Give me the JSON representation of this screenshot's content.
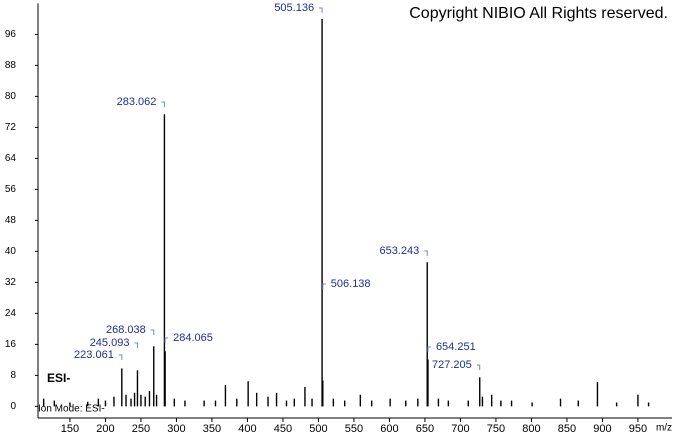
{
  "chart_data": {
    "type": "spectrum",
    "title": "Copyright NIBIO All Rights reserved.",
    "mode_label": "ESI-",
    "footer": "Ion Mode: ESI-",
    "xlabel": "m/z",
    "xlim": [
      105,
      998
    ],
    "ylim": [
      -3,
      104
    ],
    "xticks": [
      150,
      200,
      250,
      300,
      350,
      400,
      450,
      500,
      550,
      600,
      650,
      700,
      750,
      800,
      850,
      900,
      950
    ],
    "yticks": [
      0,
      8,
      16,
      24,
      32,
      40,
      48,
      56,
      64,
      72,
      80,
      88,
      96
    ],
    "color": "#000000",
    "label_color": "#1f2f8f",
    "peaks": {
      "x": [
        223.061,
        245.093,
        268.038,
        283.062,
        284.065,
        505.136,
        506.138,
        653.243,
        654.251,
        727.205
      ],
      "values": [
        9.8,
        9.3,
        15.5,
        75.4,
        14.2,
        100,
        6.7,
        37.2,
        12.1,
        7.5
      ]
    },
    "minor_peaks": {
      "x": [
        113,
        128,
        150,
        175,
        190,
        200,
        212,
        229,
        236,
        241,
        250,
        256,
        262,
        272,
        297,
        312,
        339,
        355,
        369,
        385,
        401,
        413,
        429,
        441,
        455,
        466,
        481,
        491,
        521,
        537,
        559,
        575,
        601,
        623,
        640,
        669,
        683,
        711,
        731,
        744,
        757,
        772,
        801,
        841,
        866,
        893,
        920,
        950,
        965
      ],
      "values": [
        2,
        1.5,
        1,
        1.2,
        2,
        1.5,
        2.5,
        3,
        2,
        3.5,
        3,
        2.5,
        4,
        3,
        2,
        1.5,
        1.5,
        1.5,
        5.5,
        2,
        6.5,
        3.5,
        2.5,
        3.5,
        1.5,
        2,
        5,
        2,
        2,
        1.5,
        3,
        1.5,
        2,
        1.5,
        2,
        2,
        1.5,
        1.5,
        2.5,
        3,
        1.5,
        1.5,
        1,
        2,
        1.5,
        6.3,
        1,
        3,
        1
      ]
    }
  }
}
